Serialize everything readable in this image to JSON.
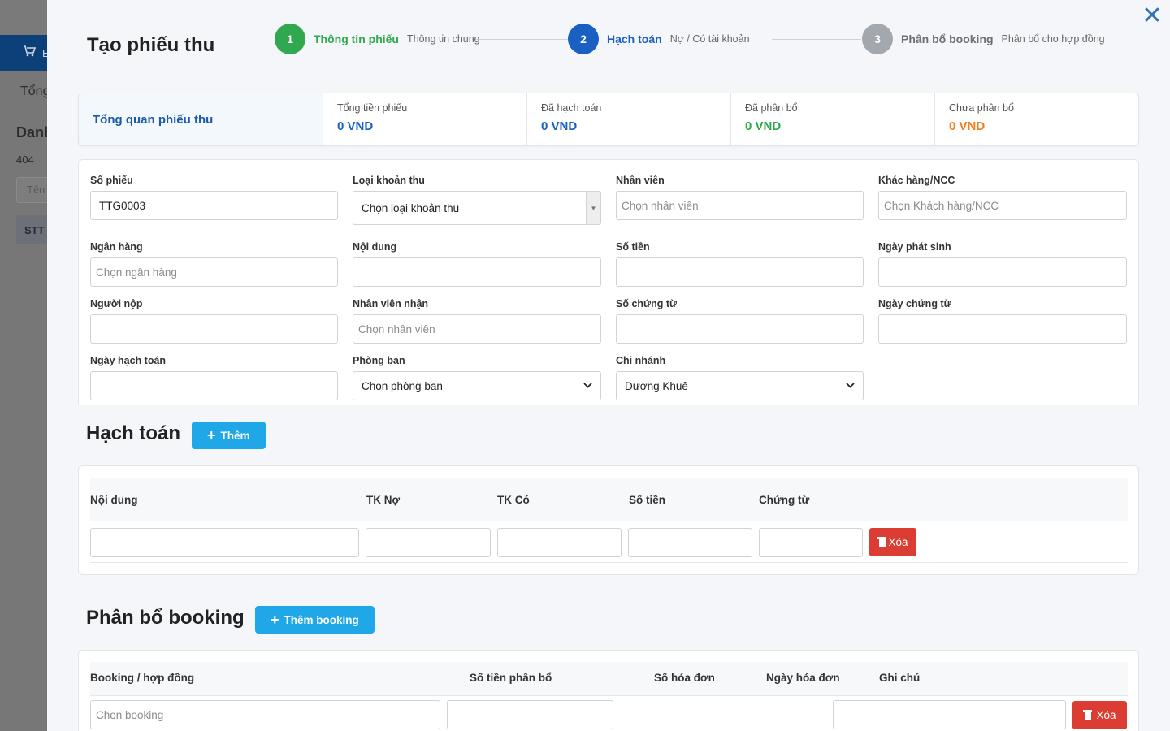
{
  "background": {
    "topbar_label": "E",
    "heading_fragment": "Tổng",
    "list_fragment": "Danh",
    "count_fragment": "404",
    "search_placeholder_fragment": "Tên",
    "column_fragment": "STT"
  },
  "drawer": {
    "title": "Tạo phiếu thu",
    "close_symbol": "✕"
  },
  "steps": [
    {
      "num": "1",
      "label": "Thông tin phiếu",
      "sub": "Thông tin chung",
      "state": "done",
      "color": "#2fa84f"
    },
    {
      "num": "2",
      "label": "Hạch toán",
      "sub": "Nợ / Có tài khoản",
      "state": "active",
      "color": "#1a5fc2"
    },
    {
      "num": "3",
      "label": "Phân bổ booking",
      "sub": "Phân bổ cho hợp đồng",
      "state": "pending",
      "color": "#a3a8ae"
    }
  ],
  "overview": {
    "title": "Tổng quan phiếu thu",
    "items": [
      {
        "label": "Tổng tiền phiếu",
        "value": "0 VND",
        "color": "#1a5fc2"
      },
      {
        "label": "Đã hạch toán",
        "value": "0 VND",
        "color": "#1a5fc2"
      },
      {
        "label": "Đã phân bổ",
        "value": "0 VND",
        "color": "#2fa84f"
      },
      {
        "label": "Chưa phân bổ",
        "value": "0 VND",
        "color": "#f08020"
      }
    ]
  },
  "form": {
    "so_phieu": {
      "label": "Số phiếu",
      "value": "TTG0003"
    },
    "loai_khoan_thu": {
      "label": "Loại khoản thu",
      "value": "Chọn loại khoản thu"
    },
    "nhan_vien": {
      "label": "Nhân viên",
      "placeholder": "Chọn nhân viên"
    },
    "khach_hang": {
      "label": "Khác hàng/NCC",
      "placeholder": "Chọn Khách hàng/NCC"
    },
    "ngan_hang": {
      "label": "Ngân hàng",
      "placeholder": "Chọn ngân hàng"
    },
    "noi_dung": {
      "label": "Nội dung",
      "value": ""
    },
    "so_tien": {
      "label": "Số tiền",
      "value": ""
    },
    "ngay_phat_sinh": {
      "label": "Ngày phát sinh",
      "value": ""
    },
    "nguoi_nop": {
      "label": "Người nộp",
      "value": ""
    },
    "nhan_vien_nhan": {
      "label": "Nhân viên nhận",
      "placeholder": "Chọn nhân viên"
    },
    "so_chung_tu": {
      "label": "Số chứng từ",
      "value": ""
    },
    "ngay_chung_tu": {
      "label": "Ngày chứng từ",
      "value": ""
    },
    "ngay_hach_toan": {
      "label": "Ngày hạch toán",
      "value": ""
    },
    "phong_ban": {
      "label": "Phòng ban",
      "value": "Chọn phòng ban"
    },
    "chi_nhanh": {
      "label": "Chi nhánh",
      "value": "Dương Khuê"
    }
  },
  "hach_toan": {
    "title": "Hạch toán",
    "add_label": "Thêm",
    "columns": [
      "Nội dung",
      "TK Nợ",
      "TK Có",
      "Số tiền",
      "Chứng từ"
    ],
    "delete_label": "Xóa"
  },
  "phan_bo": {
    "title": "Phân bổ booking",
    "add_label": "Thêm booking",
    "columns": [
      "Booking / hợp đồng",
      "Số tiền phân bổ",
      "Số hóa đơn",
      "Ngày hóa đơn",
      "Ghi chú"
    ],
    "booking_placeholder": "Chọn booking",
    "delete_label": "Xóa"
  }
}
